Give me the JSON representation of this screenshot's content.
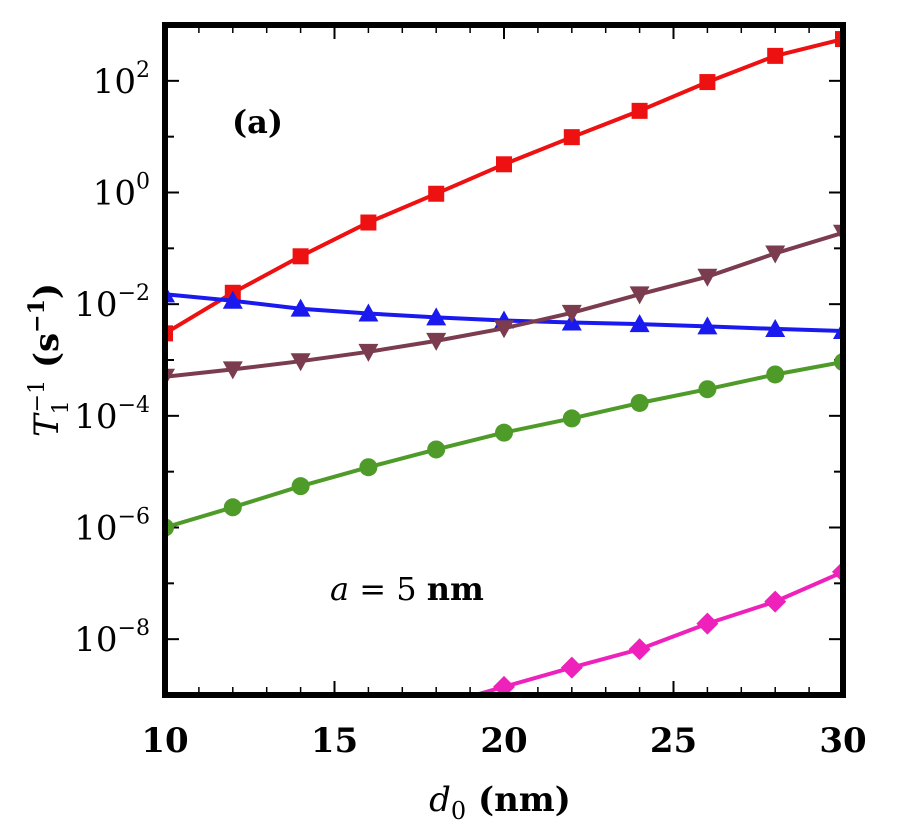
{
  "chart_data": {
    "type": "line",
    "title": "",
    "panel_label": "(a)",
    "annotation": {
      "math": "a",
      "eq": " = 5 ",
      "unit": "nm"
    },
    "xlabel": {
      "math": "d",
      "sub": "0",
      "rest": " (nm)"
    },
    "ylabel": {
      "math": "T",
      "sub": "1",
      "sup": "−1",
      "rest": " (s",
      "rest_sup": "−1",
      "close": ")"
    },
    "xlim": [
      10,
      30
    ],
    "ylim": [
      1e-09,
      1000
    ],
    "yscale": "log",
    "xticks": [
      10,
      15,
      20,
      25,
      30
    ],
    "xtick_labels": [
      "10",
      "15",
      "20",
      "25",
      "30"
    ],
    "yticks": [
      1e-08,
      1e-06,
      0.0001,
      0.01,
      1,
      100
    ],
    "ytick_labels": [
      {
        "base": "10",
        "exp": "−8"
      },
      {
        "base": "10",
        "exp": "−6"
      },
      {
        "base": "10",
        "exp": "−4"
      },
      {
        "base": "10",
        "exp": "−2"
      },
      {
        "base": "10",
        "exp": "0"
      },
      {
        "base": "10",
        "exp": "2"
      }
    ],
    "grid": false,
    "x": [
      10,
      12,
      14,
      16,
      18,
      20,
      22,
      24,
      26,
      28,
      30
    ],
    "series": [
      {
        "color": "#ee1111",
        "marker": "square",
        "values": [
          0.003,
          0.016,
          0.072,
          0.29,
          0.95,
          3.2,
          9.8,
          29,
          95,
          280,
          560
        ]
      },
      {
        "color": "#1a1aee",
        "marker": "triangle-up",
        "values": [
          0.015,
          0.0115,
          0.0083,
          0.0068,
          0.0058,
          0.0051,
          0.0047,
          0.0044,
          0.004,
          0.0036,
          0.0033
        ]
      },
      {
        "color": "#7a3c4e",
        "marker": "triangle-down",
        "values": [
          0.0005,
          0.00068,
          0.00095,
          0.0014,
          0.0022,
          0.0037,
          0.007,
          0.015,
          0.031,
          0.081,
          0.19
        ]
      },
      {
        "color": "#4e9b2a",
        "marker": "circle",
        "values": [
          1e-06,
          2.3e-06,
          5.5e-06,
          1.2e-05,
          2.5e-05,
          5e-05,
          9e-05,
          0.00017,
          0.0003,
          0.00055,
          0.00092
        ]
      },
      {
        "color": "#ee22bb",
        "marker": "diamond",
        "values": [
          null,
          null,
          null,
          null,
          null,
          1.4e-09,
          3.1e-09,
          6.6e-09,
          1.9e-08,
          4.7e-08,
          1.6e-07
        ]
      }
    ]
  }
}
